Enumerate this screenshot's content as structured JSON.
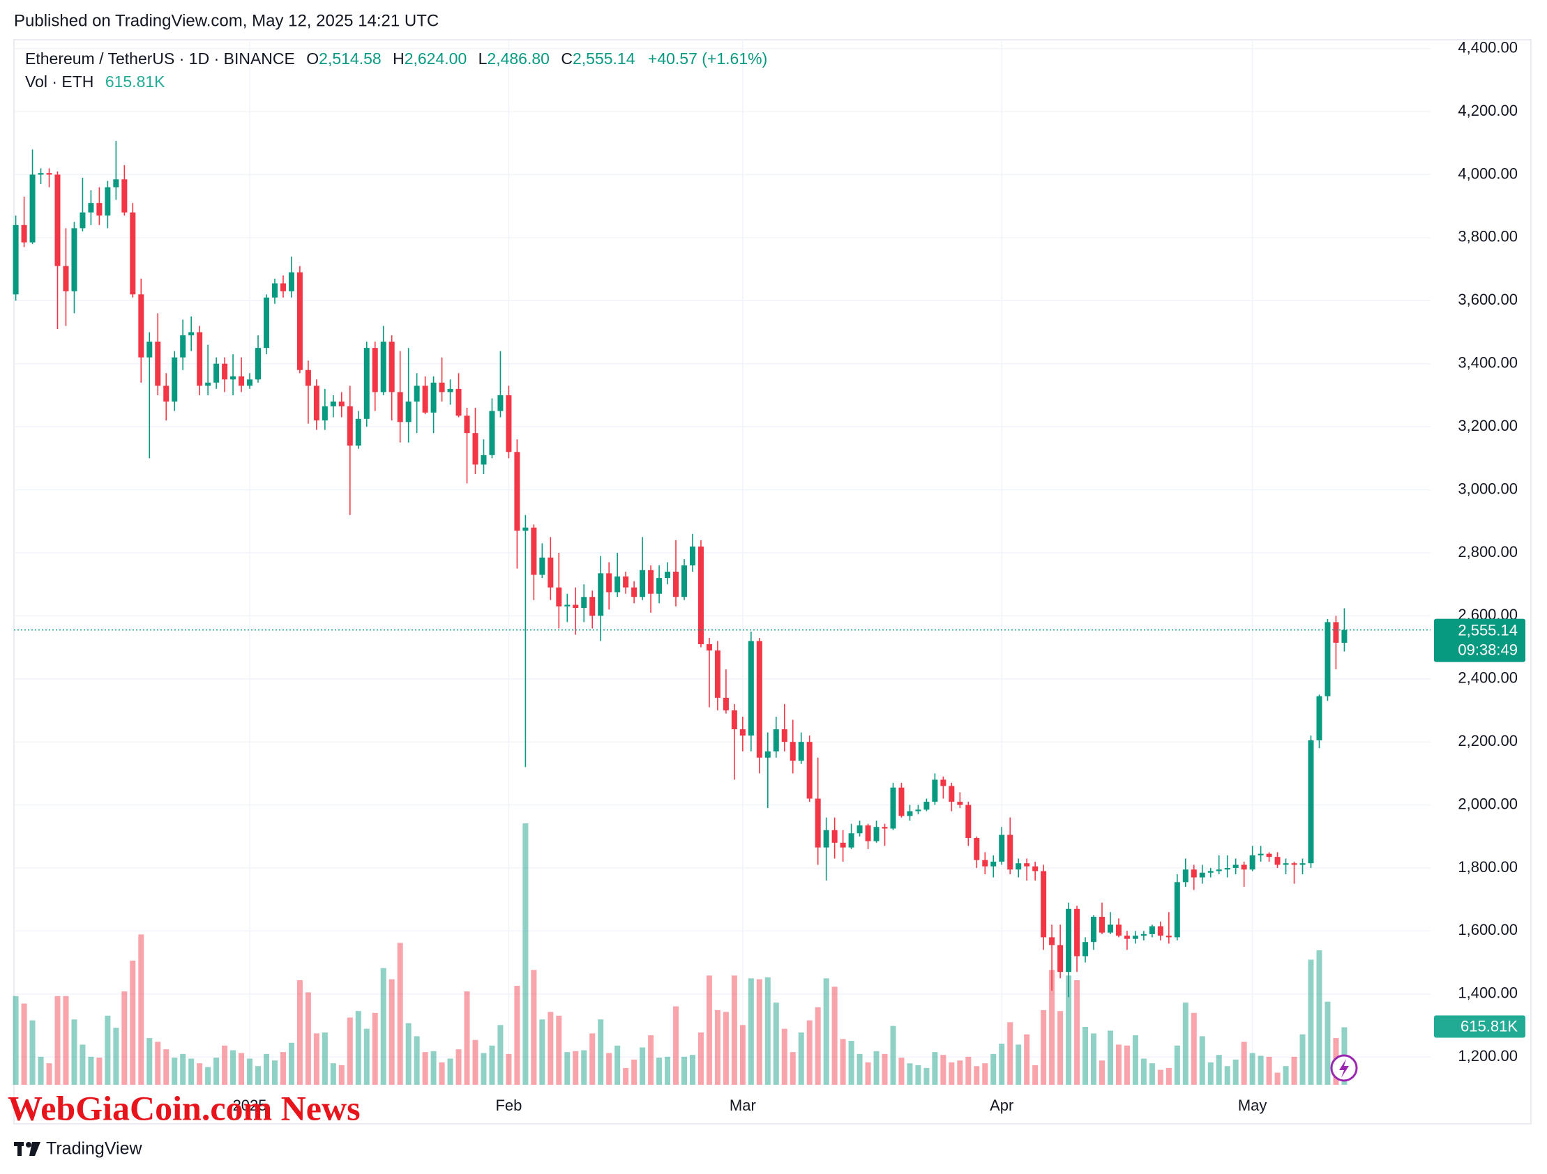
{
  "header": "Published on TradingView.com, May 12, 2025 14:21 UTC",
  "legend": {
    "symbol": "Ethereum / TetherUS · 1D · BINANCE",
    "o": "O",
    "open": "2,514.58",
    "h": "H",
    "high": "2,624.00",
    "l": "L",
    "low": "2,486.80",
    "c": "C",
    "close": "2,555.14",
    "change": "+40.57 (+1.61%)",
    "volume_name": "Vol · ETH",
    "volume": "615.81K"
  },
  "last_price_tag": {
    "price": "2,555.14",
    "countdown": "09:38:49",
    "volume": "615.81K"
  },
  "watermark": "WebGiaCoin.com News",
  "brand": "TradingView",
  "chart_data": {
    "type": "candlestick",
    "up_color": "#089981",
    "down_color": "#f23645",
    "grid": true,
    "ylim": [
      1112,
      4428
    ],
    "yticks": [
      {
        "value": 1200,
        "label": "1,200.00"
      },
      {
        "value": 1400,
        "label": "1,400.00"
      },
      {
        "value": 1600,
        "label": "1,600.00"
      },
      {
        "value": 1800,
        "label": "1,800.00"
      },
      {
        "value": 2000,
        "label": "2,000.00"
      },
      {
        "value": 2200,
        "label": "2,200.00"
      },
      {
        "value": 2400,
        "label": "2,400.00"
      },
      {
        "value": 2600,
        "label": "2,600.00"
      },
      {
        "value": 2800,
        "label": "2,800.00"
      },
      {
        "value": 3000,
        "label": "3,000.00"
      },
      {
        "value": 3200,
        "label": "3,200.00"
      },
      {
        "value": 3400,
        "label": "3,400.00"
      },
      {
        "value": 3600,
        "label": "3,600.00"
      },
      {
        "value": 3800,
        "label": "3,800.00"
      },
      {
        "value": 4000,
        "label": "4,000.00"
      },
      {
        "value": 4200,
        "label": "4,200.00"
      },
      {
        "value": 4400,
        "label": "4,400.00"
      }
    ],
    "categories": [
      null,
      null,
      null,
      null,
      null,
      null,
      null,
      null,
      null,
      null,
      null,
      null,
      null,
      null,
      null,
      null,
      null,
      null,
      null,
      null,
      null,
      null,
      null,
      null,
      null,
      null,
      null,
      null,
      "2025",
      null,
      null,
      null,
      null,
      null,
      null,
      null,
      null,
      null,
      null,
      null,
      null,
      null,
      null,
      null,
      null,
      null,
      null,
      null,
      null,
      null,
      null,
      null,
      null,
      null,
      null,
      null,
      null,
      null,
      null,
      "Feb",
      null,
      null,
      null,
      null,
      null,
      null,
      null,
      null,
      null,
      null,
      null,
      null,
      null,
      null,
      null,
      null,
      null,
      null,
      null,
      null,
      null,
      null,
      null,
      null,
      null,
      null,
      null,
      "Mar",
      null,
      null,
      null,
      null,
      null,
      null,
      null,
      null,
      null,
      null,
      null,
      null,
      null,
      null,
      null,
      null,
      null,
      null,
      null,
      null,
      null,
      null,
      null,
      null,
      null,
      null,
      null,
      null,
      null,
      null,
      "Apr",
      null,
      null,
      null,
      null,
      null,
      null,
      null,
      null,
      null,
      null,
      null,
      null,
      null,
      null,
      null,
      null,
      null,
      null,
      null,
      null,
      null,
      null,
      null,
      null,
      null,
      null,
      null,
      null,
      null,
      "May",
      null,
      null,
      null,
      null,
      null,
      null,
      null,
      null,
      null,
      null,
      null
    ],
    "candles": [
      [
        3620,
        3870,
        3600,
        3840
      ],
      [
        3840,
        3930,
        3770,
        3785
      ],
      [
        3785,
        4080,
        3780,
        4000
      ],
      [
        4000,
        4020,
        3970,
        4005
      ],
      [
        4005,
        4020,
        3960,
        4000
      ],
      [
        4000,
        4010,
        3510,
        3710
      ],
      [
        3710,
        3830,
        3520,
        3630
      ],
      [
        3630,
        3850,
        3560,
        3830
      ],
      [
        3830,
        3990,
        3820,
        3880
      ],
      [
        3880,
        3950,
        3840,
        3910
      ],
      [
        3910,
        3960,
        3840,
        3870
      ],
      [
        3870,
        3980,
        3830,
        3960
      ],
      [
        3960,
        4107,
        3920,
        3985
      ],
      [
        3985,
        4030,
        3870,
        3880
      ],
      [
        3880,
        3910,
        3610,
        3620
      ],
      [
        3620,
        3670,
        3340,
        3420
      ],
      [
        3420,
        3500,
        3100,
        3470
      ],
      [
        3470,
        3560,
        3300,
        3330
      ],
      [
        3330,
        3370,
        3220,
        3280
      ],
      [
        3280,
        3440,
        3250,
        3420
      ],
      [
        3420,
        3540,
        3380,
        3490
      ],
      [
        3490,
        3550,
        3440,
        3500
      ],
      [
        3500,
        3520,
        3300,
        3330
      ],
      [
        3330,
        3460,
        3300,
        3340
      ],
      [
        3340,
        3420,
        3320,
        3400
      ],
      [
        3400,
        3420,
        3310,
        3350
      ],
      [
        3350,
        3430,
        3300,
        3360
      ],
      [
        3360,
        3420,
        3310,
        3330
      ],
      [
        3330,
        3370,
        3320,
        3350
      ],
      [
        3350,
        3490,
        3340,
        3450
      ],
      [
        3450,
        3620,
        3430,
        3610
      ],
      [
        3610,
        3670,
        3590,
        3655
      ],
      [
        3655,
        3680,
        3610,
        3630
      ],
      [
        3630,
        3740,
        3610,
        3690
      ],
      [
        3690,
        3710,
        3370,
        3380
      ],
      [
        3380,
        3410,
        3210,
        3330
      ],
      [
        3330,
        3350,
        3190,
        3220
      ],
      [
        3220,
        3320,
        3190,
        3265
      ],
      [
        3265,
        3300,
        3230,
        3280
      ],
      [
        3280,
        3310,
        3230,
        3265
      ],
      [
        3265,
        3330,
        2920,
        3140
      ],
      [
        3140,
        3250,
        3130,
        3225
      ],
      [
        3225,
        3470,
        3200,
        3450
      ],
      [
        3450,
        3470,
        3250,
        3310
      ],
      [
        3310,
        3520,
        3300,
        3470
      ],
      [
        3470,
        3490,
        3220,
        3310
      ],
      [
        3310,
        3440,
        3150,
        3215
      ],
      [
        3215,
        3450,
        3150,
        3280
      ],
      [
        3280,
        3370,
        3180,
        3330
      ],
      [
        3330,
        3360,
        3240,
        3245
      ],
      [
        3245,
        3360,
        3180,
        3340
      ],
      [
        3340,
        3420,
        3280,
        3310
      ],
      [
        3310,
        3350,
        3270,
        3320
      ],
      [
        3320,
        3370,
        3230,
        3235
      ],
      [
        3235,
        3260,
        3020,
        3180
      ],
      [
        3180,
        3260,
        3050,
        3080
      ],
      [
        3080,
        3160,
        3050,
        3110
      ],
      [
        3110,
        3290,
        3100,
        3250
      ],
      [
        3250,
        3440,
        3230,
        3300
      ],
      [
        3300,
        3330,
        3100,
        3120
      ],
      [
        3120,
        3160,
        2750,
        2870
      ],
      [
        2870,
        2920,
        2120,
        2880
      ],
      [
        2880,
        2890,
        2650,
        2730
      ],
      [
        2730,
        2830,
        2720,
        2785
      ],
      [
        2785,
        2850,
        2650,
        2690
      ],
      [
        2690,
        2800,
        2560,
        2630
      ],
      [
        2630,
        2670,
        2580,
        2635
      ],
      [
        2635,
        2690,
        2540,
        2625
      ],
      [
        2625,
        2700,
        2580,
        2660
      ],
      [
        2660,
        2680,
        2560,
        2600
      ],
      [
        2600,
        2790,
        2520,
        2735
      ],
      [
        2735,
        2770,
        2620,
        2675
      ],
      [
        2675,
        2800,
        2660,
        2725
      ],
      [
        2725,
        2740,
        2670,
        2690
      ],
      [
        2690,
        2710,
        2640,
        2660
      ],
      [
        2660,
        2850,
        2650,
        2745
      ],
      [
        2745,
        2760,
        2610,
        2670
      ],
      [
        2670,
        2760,
        2640,
        2720
      ],
      [
        2720,
        2770,
        2700,
        2740
      ],
      [
        2740,
        2840,
        2630,
        2660
      ],
      [
        2660,
        2780,
        2650,
        2760
      ],
      [
        2760,
        2860,
        2740,
        2820
      ],
      [
        2820,
        2840,
        2500,
        2510
      ],
      [
        2510,
        2530,
        2310,
        2490
      ],
      [
        2490,
        2520,
        2300,
        2340
      ],
      [
        2340,
        2430,
        2290,
        2300
      ],
      [
        2300,
        2320,
        2080,
        2240
      ],
      [
        2240,
        2280,
        2170,
        2220
      ],
      [
        2220,
        2550,
        2170,
        2520
      ],
      [
        2520,
        2530,
        2100,
        2150
      ],
      [
        2150,
        2230,
        1990,
        2170
      ],
      [
        2170,
        2280,
        2150,
        2240
      ],
      [
        2240,
        2320,
        2170,
        2200
      ],
      [
        2200,
        2270,
        2100,
        2140
      ],
      [
        2140,
        2230,
        2130,
        2200
      ],
      [
        2200,
        2220,
        2010,
        2020
      ],
      [
        2020,
        2150,
        1810,
        1865
      ],
      [
        1865,
        1960,
        1760,
        1920
      ],
      [
        1920,
        1960,
        1830,
        1880
      ],
      [
        1880,
        1920,
        1820,
        1865
      ],
      [
        1865,
        1940,
        1860,
        1910
      ],
      [
        1910,
        1950,
        1900,
        1935
      ],
      [
        1935,
        1940,
        1860,
        1885
      ],
      [
        1885,
        1950,
        1880,
        1930
      ],
      [
        1930,
        1940,
        1870,
        1925
      ],
      [
        1925,
        2070,
        1920,
        2055
      ],
      [
        2055,
        2070,
        1960,
        1965
      ],
      [
        1965,
        2000,
        1950,
        1980
      ],
      [
        1980,
        2000,
        1970,
        1985
      ],
      [
        1985,
        2020,
        1980,
        2010
      ],
      [
        2010,
        2100,
        2000,
        2080
      ],
      [
        2080,
        2090,
        2020,
        2060
      ],
      [
        2060,
        2070,
        1980,
        2010
      ],
      [
        2010,
        2040,
        1990,
        2000
      ],
      [
        2000,
        2010,
        1870,
        1895
      ],
      [
        1895,
        1900,
        1800,
        1825
      ],
      [
        1825,
        1850,
        1780,
        1805
      ],
      [
        1805,
        1840,
        1770,
        1820
      ],
      [
        1820,
        1930,
        1810,
        1905
      ],
      [
        1905,
        1960,
        1780,
        1795
      ],
      [
        1795,
        1830,
        1770,
        1815
      ],
      [
        1815,
        1830,
        1760,
        1805
      ],
      [
        1805,
        1820,
        1760,
        1790
      ],
      [
        1790,
        1810,
        1540,
        1580
      ],
      [
        1580,
        1620,
        1410,
        1555
      ],
      [
        1555,
        1620,
        1450,
        1470
      ],
      [
        1470,
        1690,
        1390,
        1670
      ],
      [
        1670,
        1680,
        1470,
        1520
      ],
      [
        1520,
        1580,
        1500,
        1565
      ],
      [
        1565,
        1650,
        1540,
        1645
      ],
      [
        1645,
        1690,
        1590,
        1595
      ],
      [
        1595,
        1660,
        1590,
        1620
      ],
      [
        1620,
        1640,
        1580,
        1585
      ],
      [
        1585,
        1600,
        1540,
        1575
      ],
      [
        1575,
        1600,
        1560,
        1585
      ],
      [
        1585,
        1600,
        1570,
        1590
      ],
      [
        1590,
        1620,
        1580,
        1615
      ],
      [
        1615,
        1630,
        1570,
        1585
      ],
      [
        1585,
        1660,
        1560,
        1580
      ],
      [
        1580,
        1780,
        1570,
        1755
      ],
      [
        1755,
        1830,
        1740,
        1795
      ],
      [
        1795,
        1810,
        1730,
        1770
      ],
      [
        1770,
        1810,
        1750,
        1785
      ],
      [
        1785,
        1800,
        1770,
        1790
      ],
      [
        1790,
        1840,
        1780,
        1795
      ],
      [
        1795,
        1840,
        1770,
        1800
      ],
      [
        1800,
        1830,
        1780,
        1810
      ],
      [
        1810,
        1820,
        1740,
        1795
      ],
      [
        1795,
        1870,
        1790,
        1840
      ],
      [
        1840,
        1870,
        1820,
        1845
      ],
      [
        1845,
        1850,
        1820,
        1835
      ],
      [
        1835,
        1850,
        1800,
        1810
      ],
      [
        1810,
        1830,
        1780,
        1815
      ],
      [
        1815,
        1820,
        1750,
        1810
      ],
      [
        1810,
        1830,
        1780,
        1815
      ],
      [
        1815,
        2220,
        1800,
        2205
      ],
      [
        2205,
        2350,
        2180,
        2345
      ],
      [
        2345,
        2590,
        2330,
        2580
      ],
      [
        2580,
        2600,
        2430,
        2514.58
      ],
      [
        2514.58,
        2624,
        2486.8,
        2555.14
      ]
    ],
    "volume": [
      950000,
      870000,
      690000,
      300000,
      230000,
      950000,
      950000,
      700000,
      430000,
      300000,
      290000,
      740000,
      610000,
      1000000,
      1330000,
      1610000,
      500000,
      460000,
      380000,
      290000,
      330000,
      280000,
      230000,
      190000,
      290000,
      420000,
      370000,
      340000,
      280000,
      200000,
      330000,
      260000,
      350000,
      450000,
      1120000,
      990000,
      550000,
      560000,
      230000,
      210000,
      720000,
      790000,
      600000,
      770000,
      1250000,
      1130000,
      1520000,
      660000,
      520000,
      350000,
      360000,
      240000,
      280000,
      380000,
      1000000,
      480000,
      340000,
      420000,
      640000,
      330000,
      1060000,
      2800000,
      1230000,
      700000,
      780000,
      740000,
      350000,
      360000,
      370000,
      550000,
      700000,
      340000,
      420000,
      180000,
      270000,
      400000,
      530000,
      290000,
      300000,
      840000,
      300000,
      320000,
      560000,
      1170000,
      800000,
      780000,
      1170000,
      640000,
      1140000,
      1130000,
      1150000,
      880000,
      600000,
      350000,
      560000,
      690000,
      830000,
      1140000,
      1050000,
      490000,
      470000,
      330000,
      240000,
      360000,
      330000,
      630000,
      290000,
      230000,
      210000,
      180000,
      350000,
      320000,
      240000,
      260000,
      300000,
      200000,
      230000,
      330000,
      440000,
      670000,
      430000,
      540000,
      210000,
      800000,
      1230000,
      790000,
      1170000,
      1120000,
      620000,
      550000,
      260000,
      580000,
      430000,
      420000,
      530000,
      280000,
      230000,
      160000,
      180000,
      420000,
      880000,
      770000,
      520000,
      240000,
      320000,
      200000,
      270000,
      460000,
      340000,
      310000,
      300000,
      130000,
      200000,
      300000,
      540000,
      1340000,
      1440000,
      890000,
      500000,
      615810
    ]
  }
}
